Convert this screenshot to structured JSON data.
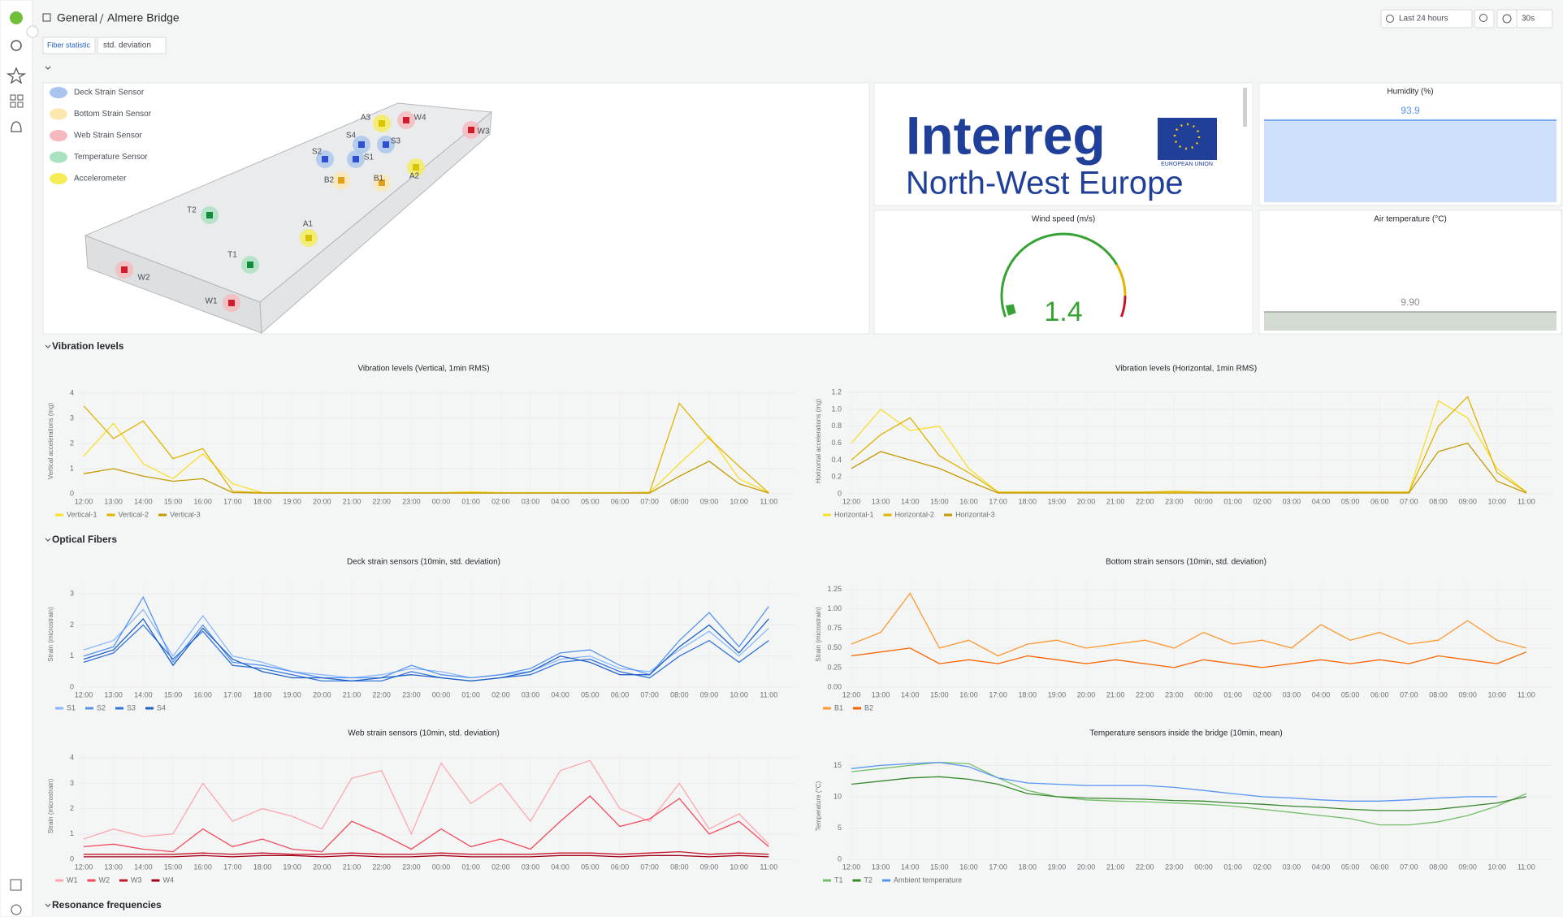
{
  "header": {
    "breadcrumb": [
      "General",
      "Almere Bridge"
    ],
    "time_range": "Last 24 hours",
    "refresh": "30s"
  },
  "variables": {
    "label": "Fiber statistic",
    "value": "std. deviation"
  },
  "rows": [
    "Vibration levels",
    "Optical Fibers",
    "Resonance frequencies"
  ],
  "bridge": {
    "legend": [
      {
        "label": "Deck Strain Sensor",
        "color": "#a9c4ee"
      },
      {
        "label": "Bottom Strain Sensor",
        "color": "#fde7b0"
      },
      {
        "label": "Web Strain Sensor",
        "color": "#f6b9bd"
      },
      {
        "label": "Temperature Sensor",
        "color": "#a8e2bf"
      },
      {
        "label": "Accelerometer",
        "color": "#f5ec5a"
      }
    ],
    "sensors": [
      "A3",
      "W4",
      "W3",
      "S4",
      "S3",
      "S2",
      "S1",
      "B2",
      "B1",
      "A2",
      "T2",
      "A1",
      "T1",
      "W2",
      "W1"
    ]
  },
  "logo": {
    "name": "Interreg",
    "region": "North-West Europe",
    "badge": "EUROPEAN UNION"
  },
  "chart_data": [
    {
      "type": "stat",
      "title": "Humidity (%)",
      "value": 93.9,
      "color": "#cfe0fb",
      "line": "#5794f2",
      "text_color": "#5794f2"
    },
    {
      "type": "gauge",
      "title": "Wind speed (m/s)",
      "value": 1.4,
      "ylim": [
        0,
        30
      ],
      "color": "#37a234"
    },
    {
      "type": "stat",
      "title": "Air temperature (°C)",
      "value": 9.9,
      "value_label": "9.90",
      "color": "#d3dbd3",
      "line": "#9aa79a",
      "text_color": "#8a8f8a"
    },
    {
      "type": "line",
      "title": "Vibration levels (Vertical, 1min RMS)",
      "y_label": "Vertical accelerations (mg)",
      "categories": [
        "12:00",
        "13:00",
        "14:00",
        "15:00",
        "16:00",
        "17:00",
        "18:00",
        "19:00",
        "20:00",
        "21:00",
        "22:00",
        "23:00",
        "00:00",
        "01:00",
        "02:00",
        "03:00",
        "04:00",
        "05:00",
        "06:00",
        "07:00",
        "08:00",
        "09:00",
        "10:00",
        "11:00"
      ],
      "ylim": [
        0,
        4.2
      ],
      "yticks": [
        0,
        1,
        2,
        3,
        4
      ],
      "grid": true,
      "series": [
        {
          "name": "Vertical-1",
          "color": "#fade2a",
          "values": [
            1.5,
            2.8,
            1.2,
            0.6,
            1.6,
            0.4,
            0.05,
            0.05,
            0.05,
            0.05,
            0.05,
            0.05,
            0.05,
            0.08,
            0.05,
            0.05,
            0.05,
            0.05,
            0.05,
            0.05,
            1.2,
            2.3,
            0.6,
            0.05
          ]
        },
        {
          "name": "Vertical-2",
          "color": "#e0b400",
          "values": [
            3.5,
            2.2,
            2.9,
            1.4,
            1.8,
            0.1,
            0.05,
            0.04,
            0.04,
            0.04,
            0.04,
            0.04,
            0.04,
            0.05,
            0.04,
            0.04,
            0.04,
            0.04,
            0.04,
            0.06,
            3.6,
            2.2,
            1.1,
            0.04
          ]
        },
        {
          "name": "Vertical-3",
          "color": "#c49a00",
          "values": [
            0.8,
            1.0,
            0.7,
            0.5,
            0.6,
            0.05,
            0.03,
            0.03,
            0.03,
            0.03,
            0.03,
            0.03,
            0.03,
            0.03,
            0.03,
            0.03,
            0.03,
            0.03,
            0.03,
            0.03,
            0.7,
            1.3,
            0.4,
            0.03
          ]
        }
      ]
    },
    {
      "type": "line",
      "title": "Vibration levels (Horizontal, 1min RMS)",
      "y_label": "Horizontal accelerations (mg)",
      "categories": [
        "12:00",
        "13:00",
        "14:00",
        "15:00",
        "16:00",
        "17:00",
        "18:00",
        "19:00",
        "20:00",
        "21:00",
        "22:00",
        "23:00",
        "00:00",
        "01:00",
        "02:00",
        "03:00",
        "04:00",
        "05:00",
        "06:00",
        "07:00",
        "08:00",
        "09:00",
        "10:00",
        "11:00"
      ],
      "ylim": [
        0,
        1.25
      ],
      "yticks": [
        0,
        0.2,
        0.4,
        0.6,
        0.8,
        {
          "value": 1,
          "label": "1.0"
        },
        1.2
      ],
      "grid": true,
      "series": [
        {
          "name": "Horizontal-1",
          "color": "#fade2a",
          "values": [
            0.6,
            1.0,
            0.75,
            0.8,
            0.3,
            0.02,
            0.02,
            0.02,
            0.02,
            0.02,
            0.02,
            0.02,
            0.02,
            0.02,
            0.02,
            0.02,
            0.02,
            0.02,
            0.02,
            0.02,
            1.1,
            0.9,
            0.3,
            0.02
          ]
        },
        {
          "name": "Horizontal-2",
          "color": "#e0b400",
          "values": [
            0.4,
            0.7,
            0.9,
            0.45,
            0.25,
            0.02,
            0.02,
            0.02,
            0.02,
            0.02,
            0.02,
            0.03,
            0.02,
            0.02,
            0.02,
            0.02,
            0.02,
            0.02,
            0.02,
            0.02,
            0.8,
            1.15,
            0.25,
            0.02
          ]
        },
        {
          "name": "Horizontal-3",
          "color": "#c49a00",
          "values": [
            0.3,
            0.5,
            0.4,
            0.3,
            0.15,
            0.01,
            0.01,
            0.01,
            0.01,
            0.01,
            0.01,
            0.01,
            0.01,
            0.01,
            0.01,
            0.01,
            0.01,
            0.01,
            0.01,
            0.01,
            0.5,
            0.6,
            0.15,
            0.01
          ]
        }
      ]
    },
    {
      "type": "line",
      "title": "Deck strain sensors (10min, std. deviation)",
      "y_label": "Strain (microstrain)",
      "categories": [
        "12:00",
        "13:00",
        "14:00",
        "15:00",
        "16:00",
        "17:00",
        "18:00",
        "19:00",
        "20:00",
        "21:00",
        "22:00",
        "23:00",
        "00:00",
        "01:00",
        "02:00",
        "03:00",
        "04:00",
        "05:00",
        "06:00",
        "07:00",
        "08:00",
        "09:00",
        "10:00",
        "11:00"
      ],
      "ylim": [
        0,
        3.4
      ],
      "yticks": [
        0,
        1,
        2,
        3
      ],
      "grid": true,
      "series": [
        {
          "name": "S1",
          "color": "#8ab8ff",
          "values": [
            1.2,
            1.5,
            2.5,
            1.0,
            2.3,
            1.0,
            0.8,
            0.5,
            0.4,
            0.3,
            0.4,
            0.6,
            0.5,
            0.3,
            0.4,
            0.5,
            0.9,
            1.0,
            0.6,
            0.5,
            1.2,
            1.8,
            1.0,
            1.9
          ]
        },
        {
          "name": "S2",
          "color": "#5794f2",
          "values": [
            1.0,
            1.3,
            2.9,
            0.8,
            2.0,
            0.8,
            0.7,
            0.5,
            0.3,
            0.3,
            0.3,
            0.7,
            0.4,
            0.3,
            0.4,
            0.6,
            1.1,
            1.2,
            0.7,
            0.4,
            1.5,
            2.4,
            1.3,
            2.6
          ]
        },
        {
          "name": "S3",
          "color": "#3274d9",
          "values": [
            0.8,
            1.1,
            2.0,
            0.9,
            1.8,
            0.7,
            0.6,
            0.4,
            0.2,
            0.2,
            0.2,
            0.5,
            0.3,
            0.2,
            0.3,
            0.4,
            0.8,
            0.9,
            0.5,
            0.3,
            1.0,
            1.5,
            0.8,
            1.5
          ]
        },
        {
          "name": "S4",
          "color": "#1f60c4",
          "values": [
            0.9,
            1.2,
            2.2,
            0.7,
            1.9,
            0.9,
            0.5,
            0.3,
            0.3,
            0.2,
            0.3,
            0.4,
            0.3,
            0.2,
            0.3,
            0.5,
            1.0,
            0.8,
            0.4,
            0.4,
            1.3,
            2.0,
            1.1,
            2.2
          ]
        }
      ]
    },
    {
      "type": "line",
      "title": "Bottom strain sensors (10min, std. deviation)",
      "y_label": "Strain (microstrain)",
      "categories": [
        "12:00",
        "13:00",
        "14:00",
        "15:00",
        "16:00",
        "17:00",
        "18:00",
        "19:00",
        "20:00",
        "21:00",
        "22:00",
        "23:00",
        "00:00",
        "01:00",
        "02:00",
        "03:00",
        "04:00",
        "05:00",
        "06:00",
        "07:00",
        "08:00",
        "09:00",
        "10:00",
        "11:00"
      ],
      "ylim": [
        0,
        1.35
      ],
      "yticks": [
        {
          "value": 0,
          "label": "0.00"
        },
        0.25,
        {
          "value": 0.5,
          "label": "0.50"
        },
        0.75,
        {
          "value": 1,
          "label": "1.00"
        },
        1.25
      ],
      "grid": true,
      "series": [
        {
          "name": "B1",
          "color": "#ff9830",
          "values": [
            0.55,
            0.7,
            1.2,
            0.5,
            0.6,
            0.4,
            0.55,
            0.6,
            0.5,
            0.55,
            0.6,
            0.5,
            0.7,
            0.55,
            0.6,
            0.5,
            0.8,
            0.6,
            0.7,
            0.55,
            0.6,
            0.85,
            0.6,
            0.5
          ]
        },
        {
          "name": "B2",
          "color": "#fa6400",
          "values": [
            0.4,
            0.45,
            0.5,
            0.3,
            0.35,
            0.3,
            0.4,
            0.35,
            0.3,
            0.35,
            0.3,
            0.25,
            0.35,
            0.3,
            0.25,
            0.3,
            0.35,
            0.3,
            0.35,
            0.3,
            0.4,
            0.35,
            0.3,
            0.45
          ]
        }
      ]
    },
    {
      "type": "line",
      "title": "Web strain sensors (10min, std. deviation)",
      "y_label": "Strain (microstrain)",
      "categories": [
        "12:00",
        "13:00",
        "14:00",
        "15:00",
        "16:00",
        "17:00",
        "18:00",
        "19:00",
        "20:00",
        "21:00",
        "22:00",
        "23:00",
        "00:00",
        "01:00",
        "02:00",
        "03:00",
        "04:00",
        "05:00",
        "06:00",
        "07:00",
        "08:00",
        "09:00",
        "10:00",
        "11:00"
      ],
      "ylim": [
        0,
        4.2
      ],
      "yticks": [
        0,
        1,
        2,
        3,
        4
      ],
      "grid": true,
      "series": [
        {
          "name": "W1",
          "color": "#ffa6b0",
          "values": [
            0.8,
            1.2,
            0.9,
            1.0,
            3.0,
            1.5,
            2.0,
            1.7,
            1.2,
            3.2,
            3.5,
            1.0,
            3.8,
            2.2,
            3.0,
            1.5,
            3.5,
            3.9,
            2.0,
            1.5,
            3.0,
            1.2,
            1.8,
            0.6
          ]
        },
        {
          "name": "W2",
          "color": "#f2495c",
          "values": [
            0.5,
            0.6,
            0.4,
            0.3,
            1.2,
            0.5,
            0.8,
            0.4,
            0.3,
            1.5,
            1.0,
            0.4,
            1.2,
            0.5,
            0.8,
            0.4,
            1.5,
            2.5,
            1.3,
            1.6,
            2.4,
            1.0,
            1.5,
            0.5
          ]
        },
        {
          "name": "W3",
          "color": "#c4162a",
          "values": [
            0.2,
            0.2,
            0.2,
            0.2,
            0.25,
            0.2,
            0.25,
            0.2,
            0.2,
            0.25,
            0.2,
            0.2,
            0.25,
            0.2,
            0.2,
            0.2,
            0.25,
            0.25,
            0.2,
            0.25,
            0.3,
            0.2,
            0.25,
            0.2
          ]
        },
        {
          "name": "W4",
          "color": "#a1001a",
          "values": [
            0.1,
            0.1,
            0.1,
            0.1,
            0.15,
            0.1,
            0.15,
            0.15,
            0.1,
            0.15,
            0.1,
            0.1,
            0.15,
            0.1,
            0.1,
            0.1,
            0.15,
            0.15,
            0.1,
            0.15,
            0.15,
            0.1,
            0.15,
            0.1
          ]
        }
      ]
    },
    {
      "type": "line",
      "title": "Temperature sensors inside the bridge (10min, mean)",
      "y_label": "Temperature (°C)",
      "categories": [
        "12:00",
        "13:00",
        "14:00",
        "15:00",
        "16:00",
        "17:00",
        "18:00",
        "19:00",
        "20:00",
        "21:00",
        "22:00",
        "23:00",
        "00:00",
        "01:00",
        "02:00",
        "03:00",
        "04:00",
        "05:00",
        "06:00",
        "07:00",
        "08:00",
        "09:00",
        "10:00",
        "11:00"
      ],
      "ylim": [
        0,
        17
      ],
      "yticks": [
        0,
        5,
        10,
        15
      ],
      "grid": true,
      "series": [
        {
          "name": "T1",
          "color": "#73bf69",
          "values": [
            14,
            14.5,
            15,
            15.5,
            15.3,
            13,
            11,
            10,
            9.5,
            9.3,
            9.2,
            9,
            8.8,
            8.5,
            8,
            7.5,
            7,
            6.5,
            5.5,
            5.5,
            6,
            7,
            8.5,
            10.5
          ]
        },
        {
          "name": "T2",
          "color": "#37872d",
          "values": [
            12,
            12.5,
            13,
            13.2,
            12.8,
            12,
            10.5,
            10,
            9.8,
            9.7,
            9.6,
            9.4,
            9.3,
            9,
            8.8,
            8.5,
            8.3,
            8,
            7.8,
            7.8,
            8,
            8.5,
            9,
            10
          ]
        },
        {
          "name": "Ambient temperature",
          "color": "#5794f2",
          "values": [
            14.5,
            15,
            15.3,
            15.5,
            14.8,
            13,
            12.2,
            12,
            11.8,
            11.8,
            11.8,
            11.5,
            11,
            10.5,
            10,
            9.8,
            9.5,
            9.3,
            9.3,
            9.5,
            9.8,
            10,
            10,
            null
          ]
        }
      ]
    }
  ]
}
